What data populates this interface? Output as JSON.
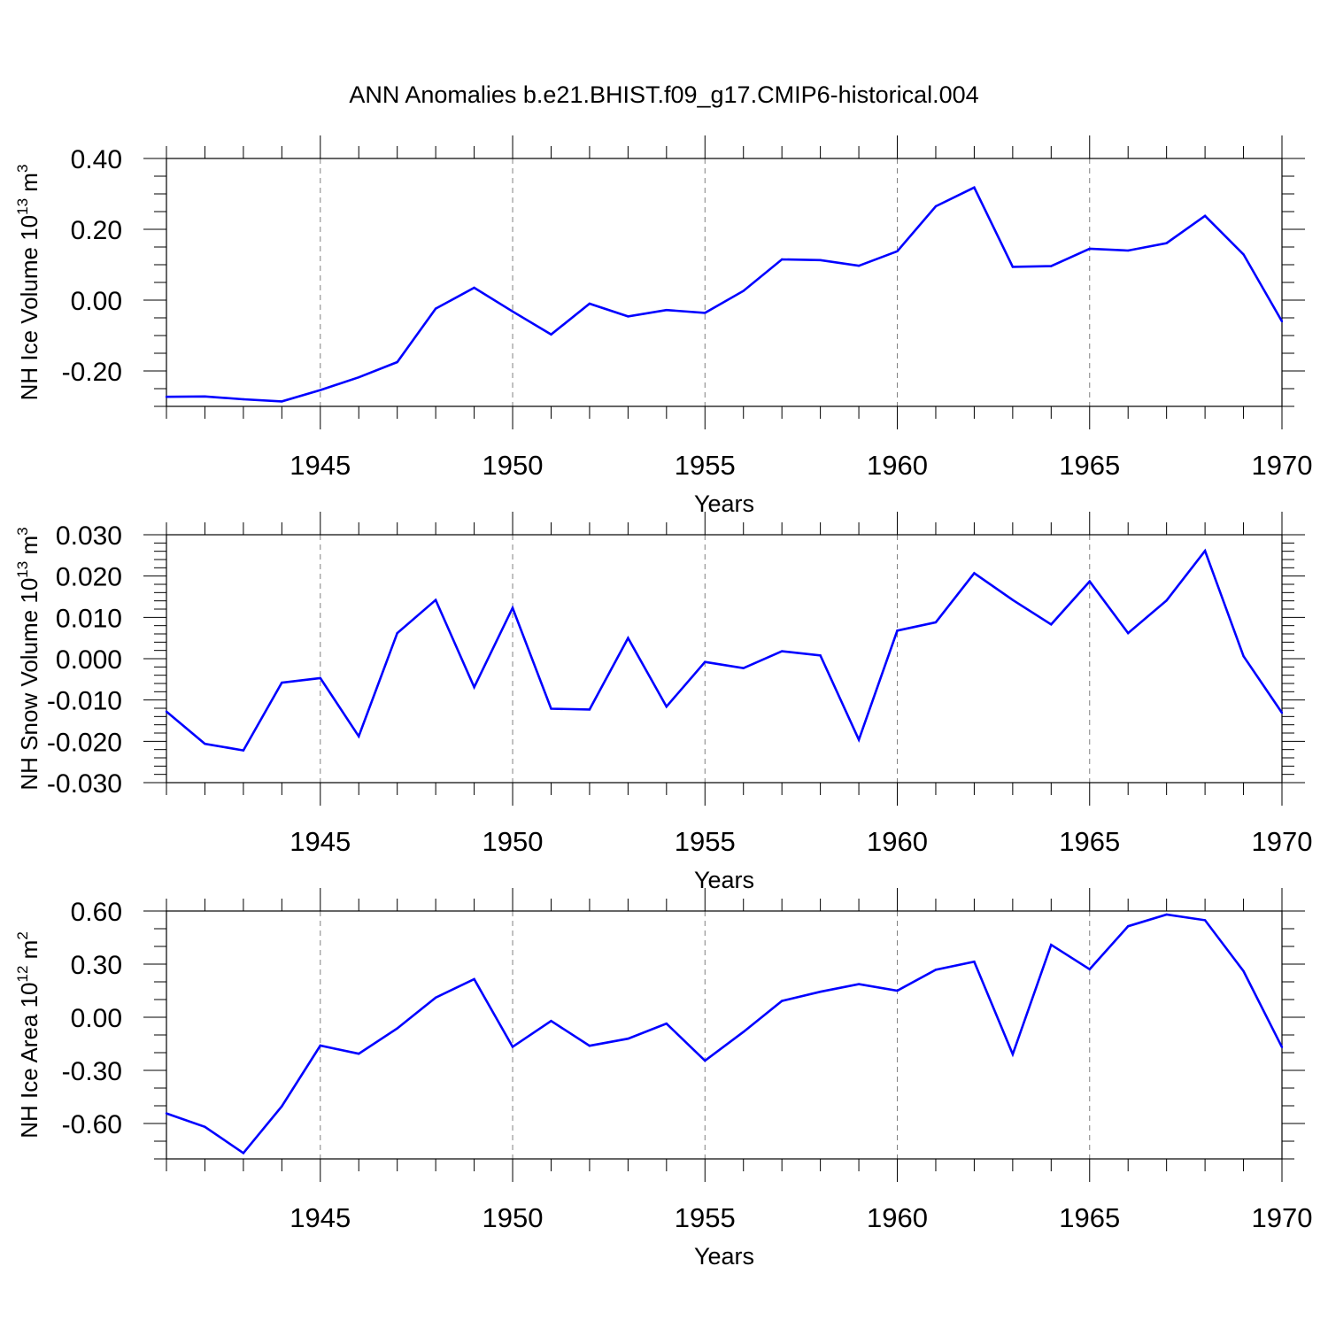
{
  "title": "ANN Anomalies b.e21.BHIST.f09_g17.CMIP6-historical.004",
  "colors": {
    "line": "#0000ff",
    "axis": "#000000",
    "grid": "#808080"
  },
  "chart_data": [
    {
      "type": "line",
      "ylabel": "NH Ice Volume 10¹³ m³",
      "ylabel_parts": {
        "text": "NH Ice Volume 10",
        "sup1": "13",
        "mid": " m",
        "sup2": "3"
      },
      "xlabel": "Years",
      "xlim": [
        1941,
        1970
      ],
      "ylim": [
        -0.3,
        0.4
      ],
      "xticks": [
        1945,
        1950,
        1955,
        1960,
        1965,
        1970
      ],
      "yticks": [
        -0.2,
        0.0,
        0.2,
        0.4
      ],
      "ytick_labels": [
        "-0.20",
        "0.00",
        "0.20",
        "0.40"
      ],
      "grid": "vertical dashed at major x ticks",
      "x": [
        1941,
        1942,
        1943,
        1944,
        1945,
        1946,
        1947,
        1948,
        1949,
        1950,
        1951,
        1952,
        1953,
        1954,
        1955,
        1956,
        1957,
        1958,
        1959,
        1960,
        1961,
        1962,
        1963,
        1964,
        1965,
        1966,
        1967,
        1968,
        1969,
        1970
      ],
      "values": [
        -0.273,
        -0.272,
        -0.28,
        -0.286,
        -0.254,
        -0.218,
        -0.175,
        -0.024,
        0.035,
        -0.032,
        -0.097,
        -0.01,
        -0.046,
        -0.028,
        -0.036,
        0.026,
        0.115,
        0.113,
        0.097,
        0.138,
        0.265,
        0.318,
        0.094,
        0.096,
        0.145,
        0.14,
        0.161,
        0.238,
        0.129,
        -0.06
      ]
    },
    {
      "type": "line",
      "ylabel": "NH Snow Volume 10¹³ m³",
      "ylabel_parts": {
        "text": "NH Snow Volume 10",
        "sup1": "13",
        "mid": " m",
        "sup2": "3"
      },
      "xlabel": "Years",
      "xlim": [
        1941,
        1970
      ],
      "ylim": [
        -0.03,
        0.03
      ],
      "xticks": [
        1945,
        1950,
        1955,
        1960,
        1965,
        1970
      ],
      "yticks": [
        -0.03,
        -0.02,
        -0.01,
        0.0,
        0.01,
        0.02,
        0.03
      ],
      "ytick_labels": [
        "-0.030",
        "-0.020",
        "-0.010",
        "0.000",
        "0.010",
        "0.020",
        "0.030"
      ],
      "grid": "vertical dashed at major x ticks",
      "x": [
        1941,
        1942,
        1943,
        1944,
        1945,
        1946,
        1947,
        1948,
        1949,
        1950,
        1951,
        1952,
        1953,
        1954,
        1955,
        1956,
        1957,
        1958,
        1959,
        1960,
        1961,
        1962,
        1963,
        1964,
        1965,
        1966,
        1967,
        1968,
        1969,
        1970
      ],
      "values": [
        -0.0128,
        -0.0206,
        -0.0222,
        -0.0058,
        -0.0047,
        -0.0188,
        0.0062,
        0.0142,
        -0.0069,
        0.0123,
        -0.0121,
        -0.0123,
        0.005,
        -0.0116,
        -0.0008,
        -0.0023,
        0.0018,
        0.0008,
        -0.0196,
        0.0068,
        0.0088,
        0.0207,
        0.0142,
        0.0083,
        0.0187,
        0.0062,
        0.0141,
        0.0261,
        0.0006,
        -0.0131
      ]
    },
    {
      "type": "line",
      "ylabel": "NH Ice Area 10¹² m²",
      "ylabel_parts": {
        "text": "NH Ice Area 10",
        "sup1": "12",
        "mid": " m",
        "sup2": "2"
      },
      "xlabel": "Years",
      "xlim": [
        1941,
        1970
      ],
      "ylim": [
        -0.8,
        0.6
      ],
      "xticks": [
        1945,
        1950,
        1955,
        1960,
        1965,
        1970
      ],
      "yticks": [
        -0.6,
        -0.3,
        0.0,
        0.3,
        0.6
      ],
      "ytick_labels": [
        "-0.60",
        "-0.30",
        "0.00",
        "0.30",
        "0.60"
      ],
      "grid": "vertical dashed at major x ticks",
      "x": [
        1941,
        1942,
        1943,
        1944,
        1945,
        1946,
        1947,
        1948,
        1949,
        1950,
        1951,
        1952,
        1953,
        1954,
        1955,
        1956,
        1957,
        1958,
        1959,
        1960,
        1961,
        1962,
        1963,
        1964,
        1965,
        1966,
        1967,
        1968,
        1969,
        1970
      ],
      "values": [
        -0.543,
        -0.619,
        -0.767,
        -0.503,
        -0.16,
        -0.206,
        -0.063,
        0.111,
        0.215,
        -0.167,
        -0.021,
        -0.161,
        -0.121,
        -0.036,
        -0.245,
        -0.083,
        0.092,
        0.144,
        0.187,
        0.15,
        0.268,
        0.314,
        -0.209,
        0.409,
        0.271,
        0.514,
        0.58,
        0.548,
        0.26,
        -0.169
      ]
    }
  ]
}
